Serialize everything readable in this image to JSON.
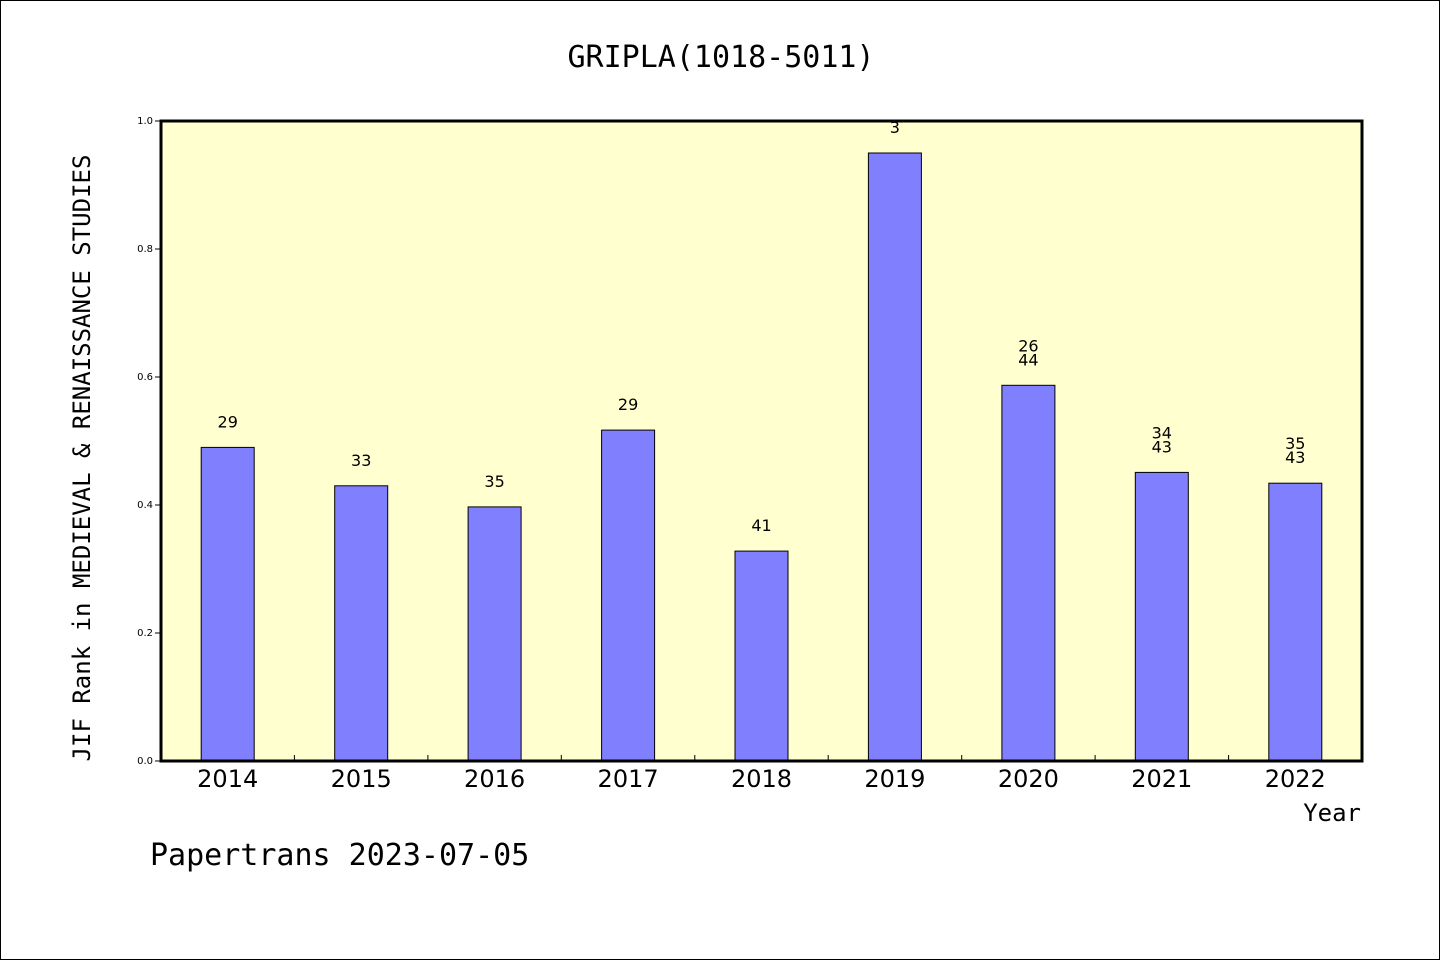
{
  "chart_data": {
    "type": "bar",
    "title": "GRIPLA(1018-5011)",
    "xlabel": "Year",
    "ylabel": "JIF Rank in MEDIEVAL & RENAISSANCE STUDIES",
    "categories": [
      "2014",
      "2015",
      "2016",
      "2017",
      "2018",
      "2019",
      "2020",
      "2021",
      "2022"
    ],
    "values": [
      0.49,
      0.43,
      0.397,
      0.517,
      0.328,
      0.95,
      0.587,
      0.451,
      0.434
    ],
    "labels": [
      [
        "29"
      ],
      [
        "33"
      ],
      [
        "35"
      ],
      [
        "29"
      ],
      [
        "41"
      ],
      [
        "3"
      ],
      [
        "26",
        "44"
      ],
      [
        "34",
        "43"
      ],
      [
        "35",
        "43"
      ]
    ],
    "ylim": [
      0,
      1.0
    ],
    "yticks": [
      "0.0",
      "0.2",
      "0.4",
      "0.6",
      "0.8",
      "1.0"
    ],
    "grid": false,
    "colors": {
      "plot_background": "#ffffd0",
      "bar_fill": "#8080ff",
      "bar_stroke": "#000000"
    }
  },
  "footer": {
    "credit": "Papertrans 2023-07-05"
  }
}
